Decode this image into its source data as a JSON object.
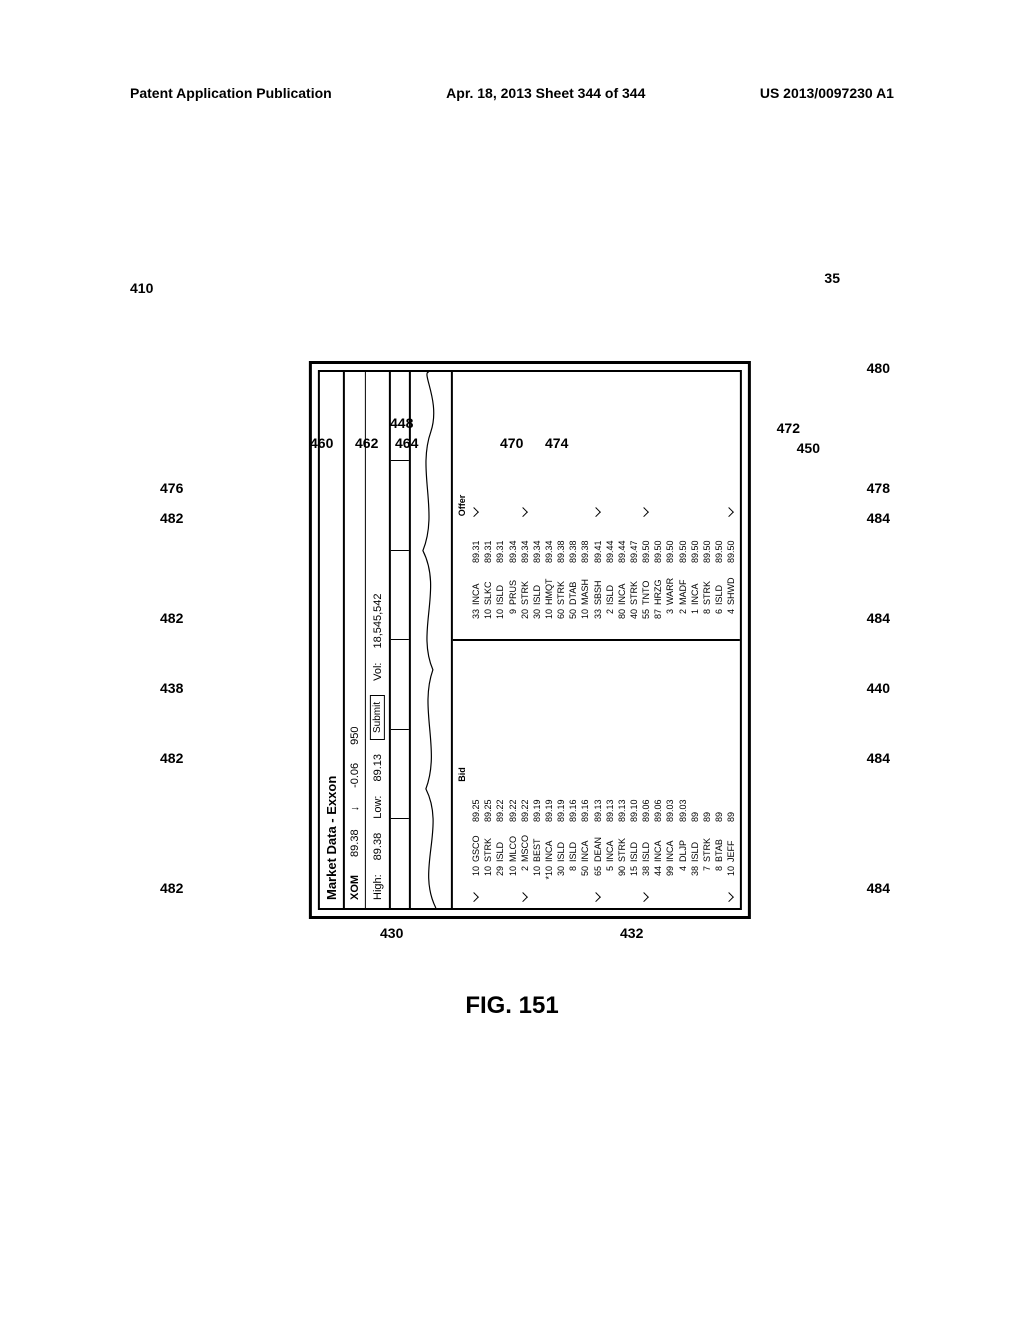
{
  "header": {
    "left": "Patent Application Publication",
    "mid": "Apr. 18, 2013  Sheet 344 of 344",
    "right": "US 2013/0097230 A1"
  },
  "window": {
    "title": "Market Data - Exxon",
    "symbol": "XOM",
    "last": "89.38",
    "change": "-0.06",
    "size": "950",
    "high_label": "High:",
    "high": "89.38",
    "low_label": "Low:",
    "low": "89.13",
    "vol_label": "Vol:",
    "vol": "18,545,542",
    "submit_label": "Submit"
  },
  "bid": {
    "header": "Bid",
    "rows": [
      {
        "sz": "10",
        "mpid": "GSCO",
        "px": "89.25",
        "tick": true
      },
      {
        "sz": "10",
        "mpid": "STRK",
        "px": "89.25",
        "tick": false
      },
      {
        "sz": "29",
        "mpid": "ISLD",
        "px": "89.22",
        "tick": false
      },
      {
        "sz": "10",
        "mpid": "MLCO",
        "px": "89.22",
        "tick": false
      },
      {
        "sz": "2",
        "mpid": "MSCO",
        "px": "89.22",
        "tick": true
      },
      {
        "sz": "10",
        "mpid": "BEST",
        "px": "89.19",
        "tick": false
      },
      {
        "sz": "*10",
        "mpid": "INCA",
        "px": "89.19",
        "tick": false
      },
      {
        "sz": "30",
        "mpid": "ISLD",
        "px": "89.19",
        "tick": false
      },
      {
        "sz": "8",
        "mpid": "ISLD",
        "px": "89.16",
        "tick": false
      },
      {
        "sz": "50",
        "mpid": "INCA",
        "px": "89.16",
        "tick": false
      },
      {
        "sz": "65",
        "mpid": "DEAN",
        "px": "89.13",
        "tick": true
      },
      {
        "sz": "5",
        "mpid": "INCA",
        "px": "89.13",
        "tick": false
      },
      {
        "sz": "90",
        "mpid": "STRK",
        "px": "89.13",
        "tick": false
      },
      {
        "sz": "15",
        "mpid": "ISLD",
        "px": "89.10",
        "tick": false
      },
      {
        "sz": "38",
        "mpid": "ISLD",
        "px": "89.06",
        "tick": true
      },
      {
        "sz": "44",
        "mpid": "INCA",
        "px": "89.06",
        "tick": false
      },
      {
        "sz": "99",
        "mpid": "INCA",
        "px": "89.03",
        "tick": false
      },
      {
        "sz": "4",
        "mpid": "DLJP",
        "px": "89.03",
        "tick": false
      },
      {
        "sz": "38",
        "mpid": "ISLD",
        "px": "89",
        "tick": false
      },
      {
        "sz": "7",
        "mpid": "STRK",
        "px": "89",
        "tick": false
      },
      {
        "sz": "8",
        "mpid": "BTAB",
        "px": "89",
        "tick": false
      },
      {
        "sz": "10",
        "mpid": "JEFF",
        "px": "89",
        "tick": true
      }
    ]
  },
  "offer": {
    "header": "Offer",
    "rows": [
      {
        "sz": "33",
        "mpid": "INCA",
        "px": "89.31",
        "tick": true
      },
      {
        "sz": "10",
        "mpid": "SLKC",
        "px": "89.31",
        "tick": false
      },
      {
        "sz": "10",
        "mpid": "ISLD",
        "px": "89.31",
        "tick": false
      },
      {
        "sz": "9",
        "mpid": "PRUS",
        "px": "89.34",
        "tick": false
      },
      {
        "sz": "20",
        "mpid": "STRK",
        "px": "89.34",
        "tick": true
      },
      {
        "sz": "30",
        "mpid": "ISLD",
        "px": "89.34",
        "tick": false
      },
      {
        "sz": "10",
        "mpid": "HMQT",
        "px": "89.34",
        "tick": false
      },
      {
        "sz": "60",
        "mpid": "STRK",
        "px": "89.38",
        "tick": false
      },
      {
        "sz": "50",
        "mpid": "DTAB",
        "px": "89.38",
        "tick": false
      },
      {
        "sz": "10",
        "mpid": "MASH",
        "px": "89.38",
        "tick": false
      },
      {
        "sz": "33",
        "mpid": "SBSH",
        "px": "89.41",
        "tick": true
      },
      {
        "sz": "2",
        "mpid": "ISLD",
        "px": "89.44",
        "tick": false
      },
      {
        "sz": "80",
        "mpid": "INCA",
        "px": "89.44",
        "tick": false
      },
      {
        "sz": "40",
        "mpid": "STRK",
        "px": "89.47",
        "tick": false
      },
      {
        "sz": "55",
        "mpid": "TNTO",
        "px": "89.50",
        "tick": true
      },
      {
        "sz": "87",
        "mpid": "HRZG",
        "px": "89.50",
        "tick": false
      },
      {
        "sz": "3",
        "mpid": "WARR",
        "px": "89.50",
        "tick": false
      },
      {
        "sz": "2",
        "mpid": "MADF",
        "px": "89.50",
        "tick": false
      },
      {
        "sz": "1",
        "mpid": "INCA",
        "px": "89.50",
        "tick": false
      },
      {
        "sz": "8",
        "mpid": "STRK",
        "px": "89.50",
        "tick": false
      },
      {
        "sz": "6",
        "mpid": "ISLD",
        "px": "89.50",
        "tick": false
      },
      {
        "sz": "4",
        "mpid": "SHWD",
        "px": "89.50",
        "tick": true
      }
    ]
  },
  "tabs": {
    "labels": [
      "460",
      "462",
      "464",
      "470",
      "474",
      "472"
    ]
  },
  "refs": {
    "r410": "410",
    "r35": "35",
    "r480": "480",
    "r450": "450",
    "r448": "448",
    "r460": "460",
    "r462": "462",
    "r464": "464",
    "r470": "470",
    "r474": "474",
    "r472": "472",
    "r476": "476",
    "r478": "478",
    "r482": "482",
    "r484": "484",
    "r438": "438",
    "r440": "440",
    "r430": "430",
    "r432": "432"
  },
  "caption": "FIG. 151"
}
